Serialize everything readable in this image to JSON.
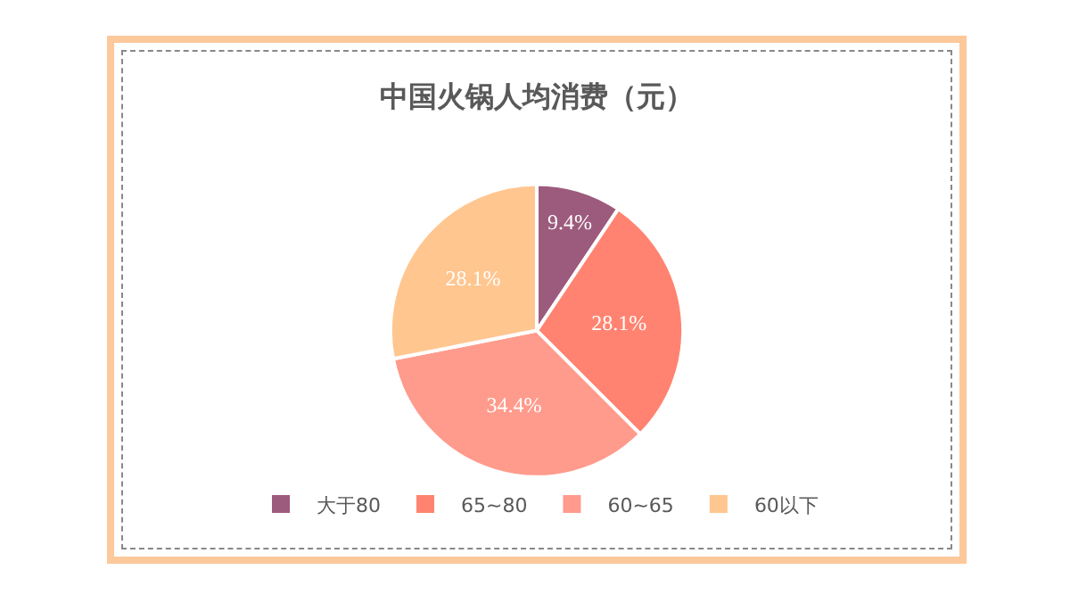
{
  "chart_data": {
    "type": "pie",
    "title": "中国火锅人均消费（元）",
    "categories": [
      "大于80",
      "65~80",
      "60~65",
      "60以下"
    ],
    "values": [
      9.4,
      28.1,
      34.4,
      28.1
    ],
    "colors": [
      "#9c5b7c",
      "#ff8370",
      "#ff9b8c",
      "#ffc690"
    ],
    "value_labels": [
      "9.4%",
      "28.1%",
      "34.4%",
      "28.1%"
    ],
    "legend": "bottom"
  }
}
